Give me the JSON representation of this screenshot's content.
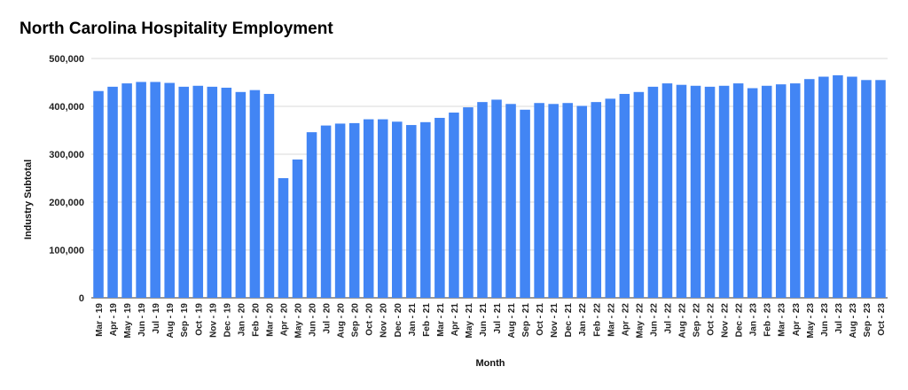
{
  "chart_data": {
    "type": "bar",
    "title": "North Carolina Hospitality Employment",
    "xlabel": "Month",
    "ylabel": "Industry Subtotal",
    "ylim": [
      0,
      500000
    ],
    "yticks": [
      "0",
      "100,000",
      "200,000",
      "300,000",
      "400,000",
      "500,000"
    ],
    "ytick_values": [
      0,
      100000,
      200000,
      300000,
      400000,
      500000
    ],
    "grid": true,
    "legend": "none",
    "bar_color": "#4285f4",
    "categories": [
      "Mar - 19",
      "Apr - 19",
      "May - 19",
      "Jun - 19",
      "Jul - 19",
      "Aug - 19",
      "Sep - 19",
      "Oct - 19",
      "Nov - 19",
      "Dec - 19",
      "Jan - 20",
      "Feb - 20",
      "Mar - 20",
      "Apr - 20",
      "May - 20",
      "Jun - 20",
      "Jul - 20",
      "Aug - 20",
      "Sep - 20",
      "Oct - 20",
      "Nov - 20",
      "Dec - 20",
      "Jan - 21",
      "Feb - 21",
      "Mar - 21",
      "Apr - 21",
      "May - 21",
      "Jun - 21",
      "Jul - 21",
      "Aug - 21",
      "Sep - 21",
      "Oct - 21",
      "Nov - 21",
      "Dec - 21",
      "Jan - 22",
      "Feb - 22",
      "Mar - 22",
      "Apr - 22",
      "May - 22",
      "Jun - 22",
      "Jul - 22",
      "Aug - 22",
      "Sep - 22",
      "Oct - 22",
      "Nov - 22",
      "Dec - 22",
      "Jan - 23",
      "Feb - 23",
      "Mar - 23",
      "Apr - 23",
      "May - 23",
      "Jun - 23",
      "Jul - 23",
      "Aug - 23",
      "Sep - 23",
      "Oct - 23"
    ],
    "values": [
      432000,
      441000,
      448000,
      451000,
      451000,
      449000,
      441000,
      443000,
      441000,
      439000,
      430000,
      434000,
      426000,
      250000,
      289000,
      346000,
      360000,
      364000,
      365000,
      373000,
      373000,
      368000,
      361000,
      367000,
      376000,
      387000,
      398000,
      409000,
      414000,
      405000,
      393000,
      407000,
      405000,
      407000,
      401000,
      409000,
      416000,
      426000,
      430000,
      441000,
      448000,
      445000,
      443000,
      441000,
      443000,
      448000,
      438000,
      443000,
      446000,
      448000,
      457000,
      462000,
      465000,
      462000,
      455000,
      455000
    ]
  }
}
